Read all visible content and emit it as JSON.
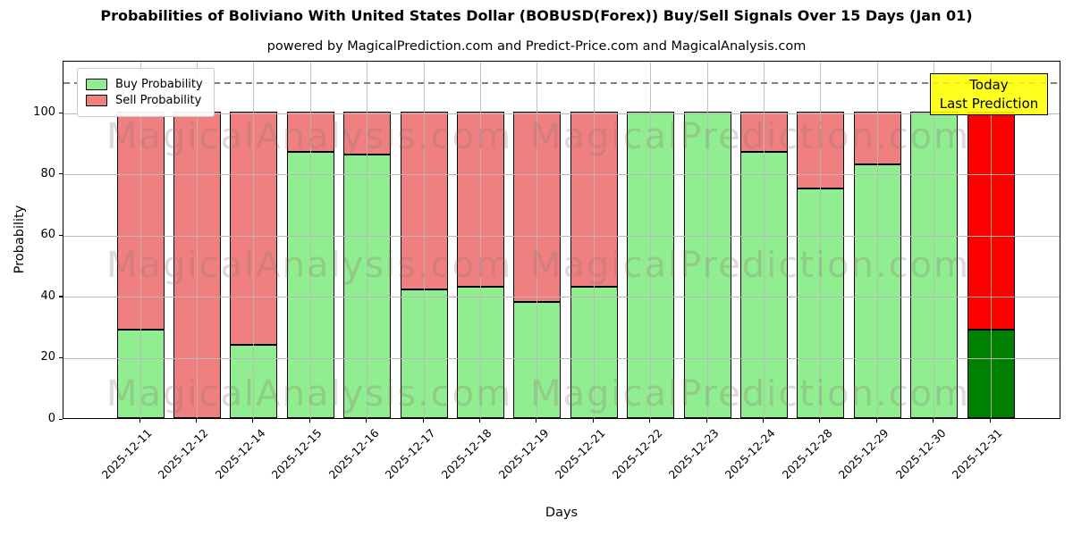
{
  "chart_data": {
    "type": "bar",
    "stacked": true,
    "title": "Probabilities of Boliviano With United States Dollar (BOBUSD(Forex)) Buy/Sell Signals Over 15 Days (Jan 01)",
    "subtitle": "powered by MagicalPrediction.com and Predict-Price.com and MagicalAnalysis.com",
    "xlabel": "Days",
    "ylabel": "Probability",
    "categories": [
      "2025-12-11",
      "2025-12-12",
      "2025-12-14",
      "2025-12-15",
      "2025-12-16",
      "2025-12-17",
      "2025-12-18",
      "2025-12-19",
      "2025-12-21",
      "2025-12-22",
      "2025-12-23",
      "2025-12-24",
      "2025-12-28",
      "2025-12-29",
      "2025-12-30",
      "2025-12-31"
    ],
    "series": [
      {
        "name": "Buy Probability",
        "color": "#90EE90",
        "values": [
          29,
          0,
          24,
          87,
          86,
          42,
          43,
          38,
          43,
          100,
          100,
          87,
          75,
          83,
          100,
          29
        ]
      },
      {
        "name": "Sell Probability",
        "color": "#F08080",
        "values": [
          71,
          100,
          76,
          13,
          14,
          58,
          57,
          62,
          57,
          0,
          0,
          13,
          25,
          17,
          0,
          71
        ]
      }
    ],
    "final_bar_colors": {
      "buy": "#008000",
      "sell": "#FF0000"
    },
    "ylim": [
      0,
      117
    ],
    "yticks": [
      0,
      20,
      40,
      60,
      80,
      100
    ],
    "grid": true,
    "legend_position": "upper left",
    "dashed_threshold_y": 110,
    "annotation_box": {
      "lines": [
        "Today",
        "Last Prediction"
      ],
      "bg": "#FFFF00",
      "position": "top-right"
    },
    "watermarks": {
      "left_text": "MagicalAnalysis.com",
      "right_text": "MagicalPrediction.com"
    }
  },
  "colors": {
    "grid": "#b9b9b9",
    "dashed_line": "#7f7f7f",
    "bar_edge": "#000000"
  }
}
